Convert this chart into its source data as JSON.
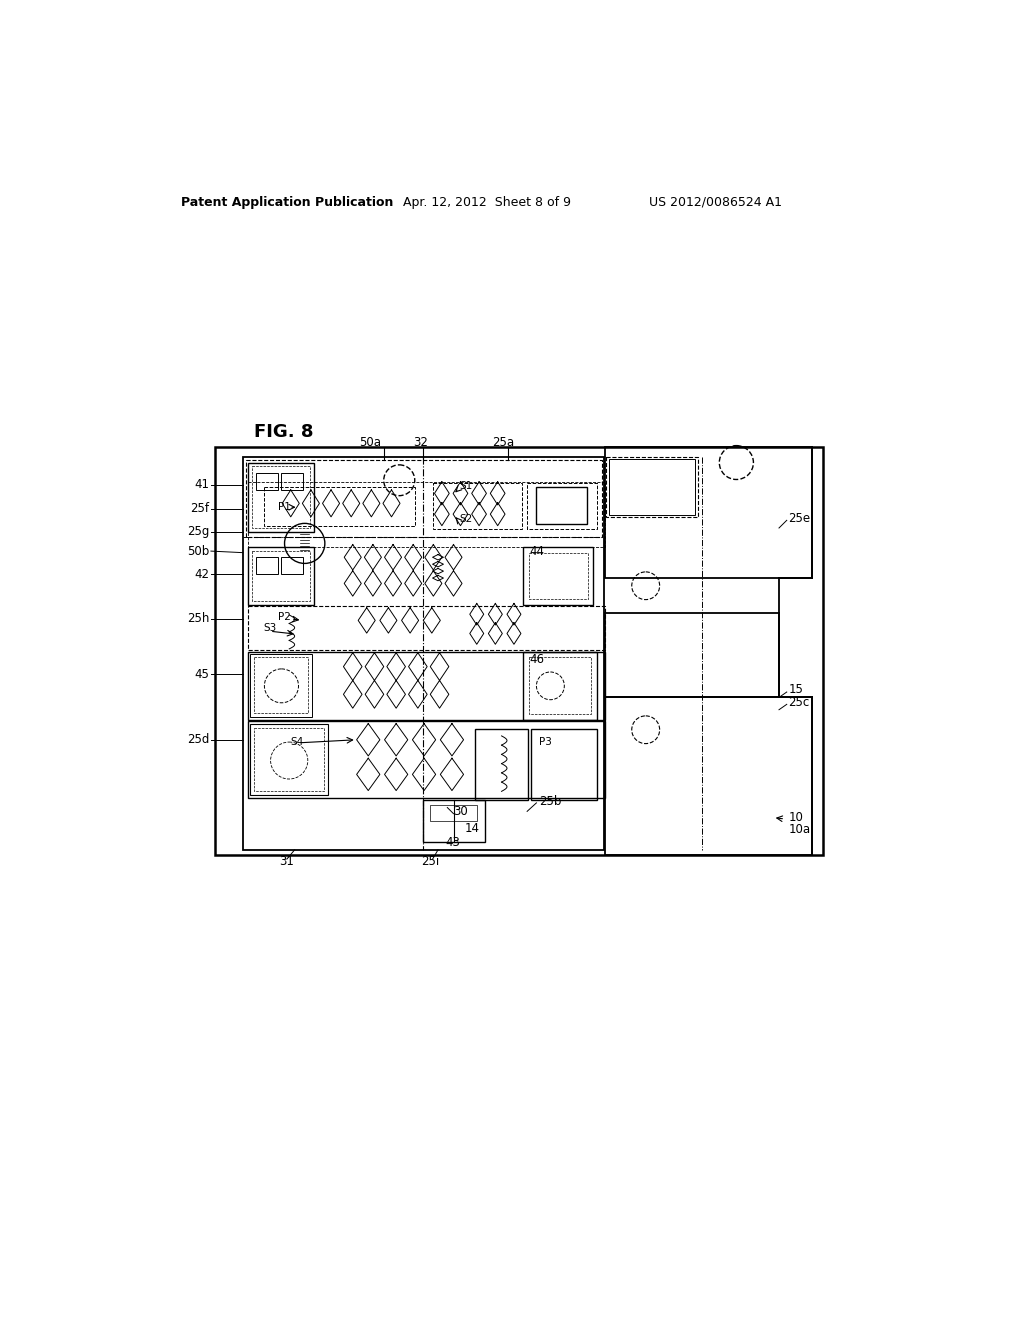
{
  "header_left": "Patent Application Publication",
  "header_center": "Apr. 12, 2012  Sheet 8 of 9",
  "header_right": "US 2012/0086524 A1",
  "fig_label": "FIG. 8",
  "bg_color": "#ffffff"
}
